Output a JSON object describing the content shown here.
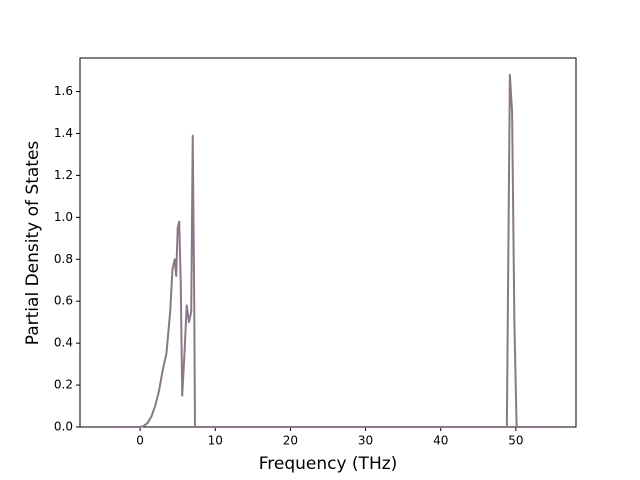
{
  "chart_data": {
    "type": "line",
    "xlabel": "Frequency (THz)",
    "ylabel": "Partial Density of States",
    "x": [
      -5,
      0,
      0.5,
      1,
      1.5,
      2,
      2.5,
      3,
      3.5,
      4,
      4.3,
      4.6,
      4.8,
      5,
      5.2,
      5.4,
      5.6,
      5.9,
      6.2,
      6.5,
      6.8,
      7,
      7.2,
      7.3,
      10,
      48.8,
      49.2,
      49.5,
      49.8,
      50.1,
      55
    ],
    "series": [
      {
        "color": "#8a7888",
        "values": [
          0,
          0,
          0.005,
          0.02,
          0.05,
          0.1,
          0.17,
          0.27,
          0.35,
          0.55,
          0.75,
          0.8,
          0.72,
          0.95,
          0.98,
          0.7,
          0.15,
          0.35,
          0.58,
          0.5,
          0.55,
          1.39,
          0.6,
          0,
          0,
          0,
          1.68,
          1.5,
          0.5,
          0,
          0
        ]
      }
    ],
    "xlim": [
      -8,
      58
    ],
    "ylim": [
      0,
      1.76
    ],
    "xticks": [
      0,
      10,
      20,
      30,
      40,
      50
    ],
    "yticks": [
      {
        "value": 0,
        "label": "0.0"
      },
      0.2,
      0.4,
      0.6,
      0.8,
      {
        "value": 1,
        "label": "1.0"
      },
      1.2,
      1.4,
      1.6
    ]
  }
}
